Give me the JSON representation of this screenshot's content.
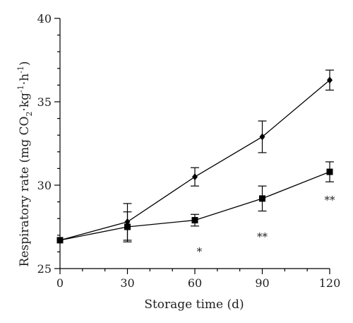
{
  "chart_data": {
    "type": "line",
    "title": "",
    "xlabel": "Storage time (d)",
    "ylabel": {
      "prefix": "Respiratory rate (mg CO",
      "co2_sub": "2",
      "mid": "·kg",
      "sup1": "-1",
      "mid2": "·h",
      "sup2": "-1",
      "suffix": ")"
    },
    "xlim": [
      0,
      120
    ],
    "ylim": [
      25,
      40
    ],
    "xticks": [
      0,
      30,
      60,
      90,
      120
    ],
    "yticks": [
      25,
      30,
      35,
      40
    ],
    "x": [
      0,
      30,
      60,
      90,
      120
    ],
    "series": [
      {
        "marker": "diamond",
        "values": [
          26.7,
          27.8,
          30.5,
          32.9,
          36.3
        ],
        "errors": [
          0.0,
          1.1,
          0.55,
          0.95,
          0.6
        ]
      },
      {
        "marker": "square",
        "values": [
          26.7,
          27.5,
          27.9,
          29.2,
          30.8
        ],
        "errors": [
          0.0,
          0.9,
          0.35,
          0.75,
          0.6
        ]
      }
    ],
    "annotations": [
      {
        "x": 62,
        "y": 25.8,
        "text": "*"
      },
      {
        "x": 90,
        "y": 26.7,
        "text": "**"
      },
      {
        "x": 120,
        "y": 28.9,
        "text": "**"
      }
    ]
  }
}
